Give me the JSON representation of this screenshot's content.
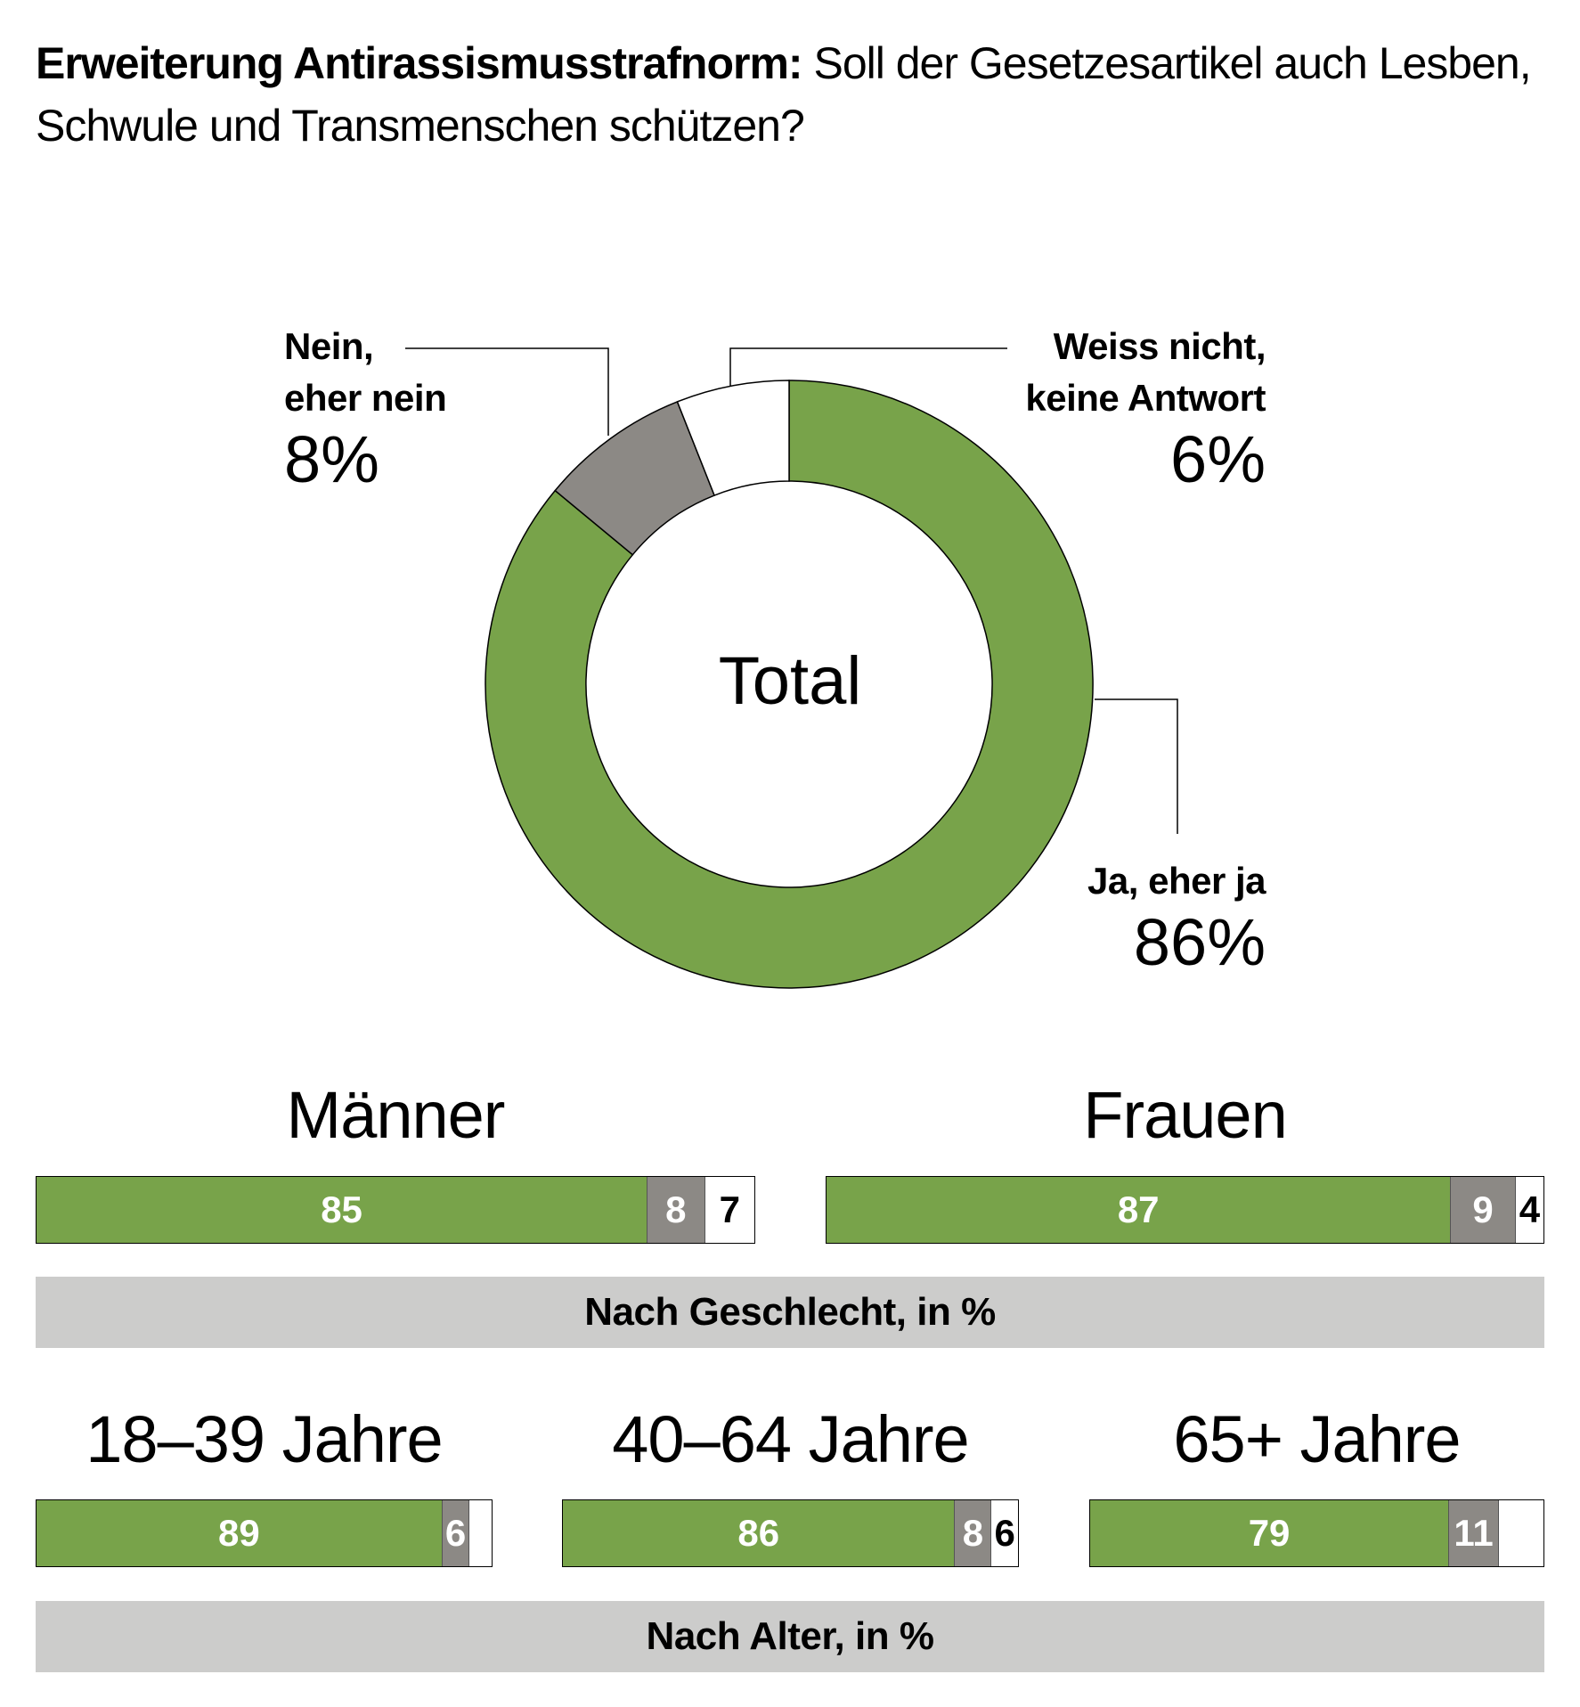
{
  "title": {
    "bold": "Erweiterung Antirassismusstrafnorm:",
    "regular": " Soll der Gesetzesartikel auch Lesben, Schwule und Transmenschen schützen?"
  },
  "colors": {
    "yes": "#78a34a",
    "no": "#8c8985",
    "dk": "#ffffff",
    "band": "#cccccb"
  },
  "chart_data": [
    {
      "type": "pie",
      "subtype": "donut",
      "center_label": "Total",
      "slices": [
        {
          "name_line1": "Ja, eher ja",
          "name_line2": "",
          "value": 86,
          "label": "86%"
        },
        {
          "name_line1": "Nein,",
          "name_line2": "eher nein",
          "value": 8,
          "label": "8%"
        },
        {
          "name_line1": "Weiss nicht,",
          "name_line2": "keine Antwort",
          "value": 6,
          "label": "6%"
        }
      ]
    },
    {
      "type": "bar",
      "orientation": "horizontal-stacked",
      "section_label": "Nach Geschlecht, in %",
      "groups": [
        {
          "name": "Männer",
          "values": [
            85,
            8,
            7
          ],
          "labels": [
            "85",
            "8",
            "7"
          ]
        },
        {
          "name": "Frauen",
          "values": [
            87,
            9,
            4
          ],
          "labels": [
            "87",
            "9",
            "4"
          ]
        }
      ]
    },
    {
      "type": "bar",
      "orientation": "horizontal-stacked",
      "section_label": "Nach Alter, in %",
      "groups": [
        {
          "name": "18–39 Jahre",
          "values": [
            89,
            6,
            5
          ],
          "labels": [
            "89",
            "6",
            ""
          ]
        },
        {
          "name": "40–64 Jahre",
          "values": [
            86,
            8,
            6
          ],
          "labels": [
            "86",
            "8",
            "6"
          ]
        },
        {
          "name": "65+ Jahre",
          "values": [
            79,
            11,
            10
          ],
          "labels": [
            "79",
            "11",
            ""
          ]
        }
      ]
    }
  ]
}
